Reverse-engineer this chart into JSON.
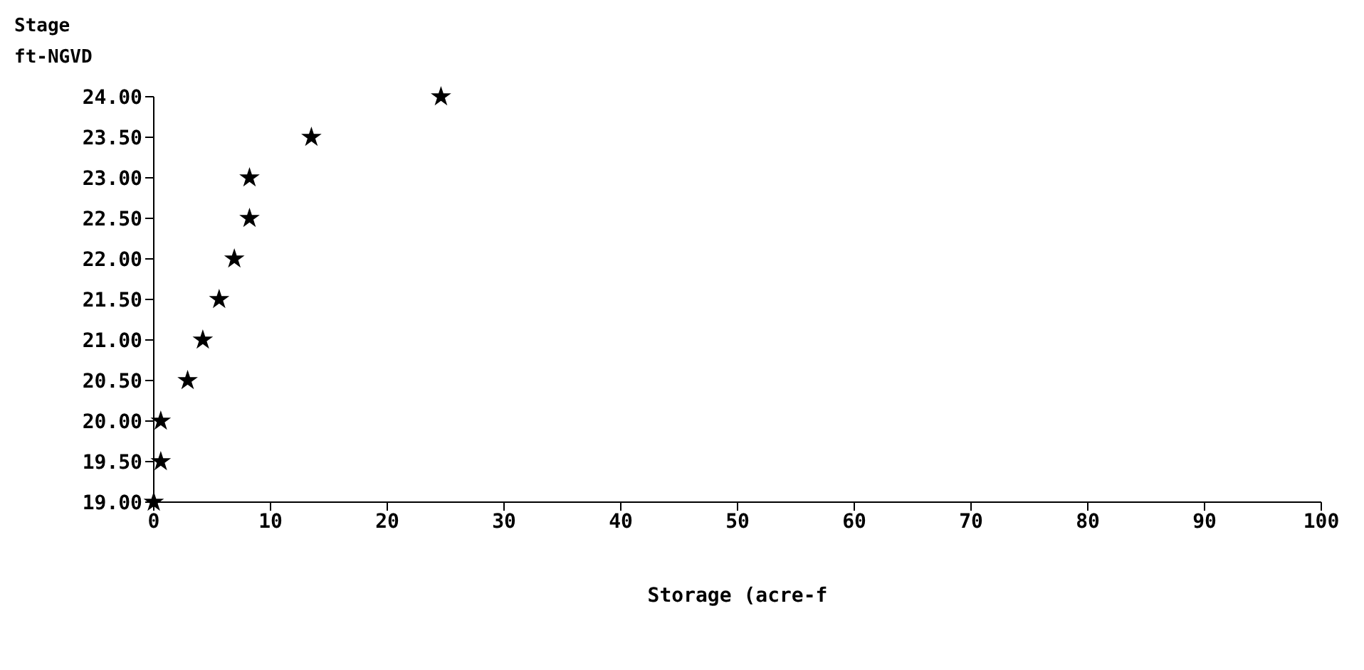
{
  "chart_data": {
    "type": "scatter",
    "xlabel": "Storage (acre-f",
    "ylabel": "Stage ft-NGVD",
    "x": [
      0,
      0.6,
      0.6,
      2.9,
      4.2,
      5.6,
      6.9,
      8.2,
      8.2,
      13.5,
      24.6
    ],
    "values": [
      19,
      19.5,
      20,
      20.5,
      21,
      21.5,
      22,
      22.5,
      23,
      23.5,
      24
    ],
    "color": "#000000",
    "marker": "star",
    "grid": false,
    "xlim": [
      0,
      100
    ],
    "xticks": [
      0,
      10,
      20,
      30,
      40,
      50,
      60,
      70,
      80,
      90,
      100
    ],
    "ylim": [
      19,
      24
    ],
    "yticks": [
      {
        "value": 19,
        "label": "19.00"
      },
      {
        "value": 19.5,
        "label": "19.50"
      },
      {
        "value": 20,
        "label": "20.00"
      },
      {
        "value": 20.5,
        "label": "20.50"
      },
      {
        "value": 21,
        "label": "21.00"
      },
      {
        "value": 21.5,
        "label": "21.50"
      },
      {
        "value": 22,
        "label": "22.00"
      },
      {
        "value": 22.5,
        "label": "22.50"
      },
      {
        "value": 23,
        "label": "23.00"
      },
      {
        "value": 23.5,
        "label": "23.50"
      },
      {
        "value": 24,
        "label": "24.00"
      }
    ]
  }
}
